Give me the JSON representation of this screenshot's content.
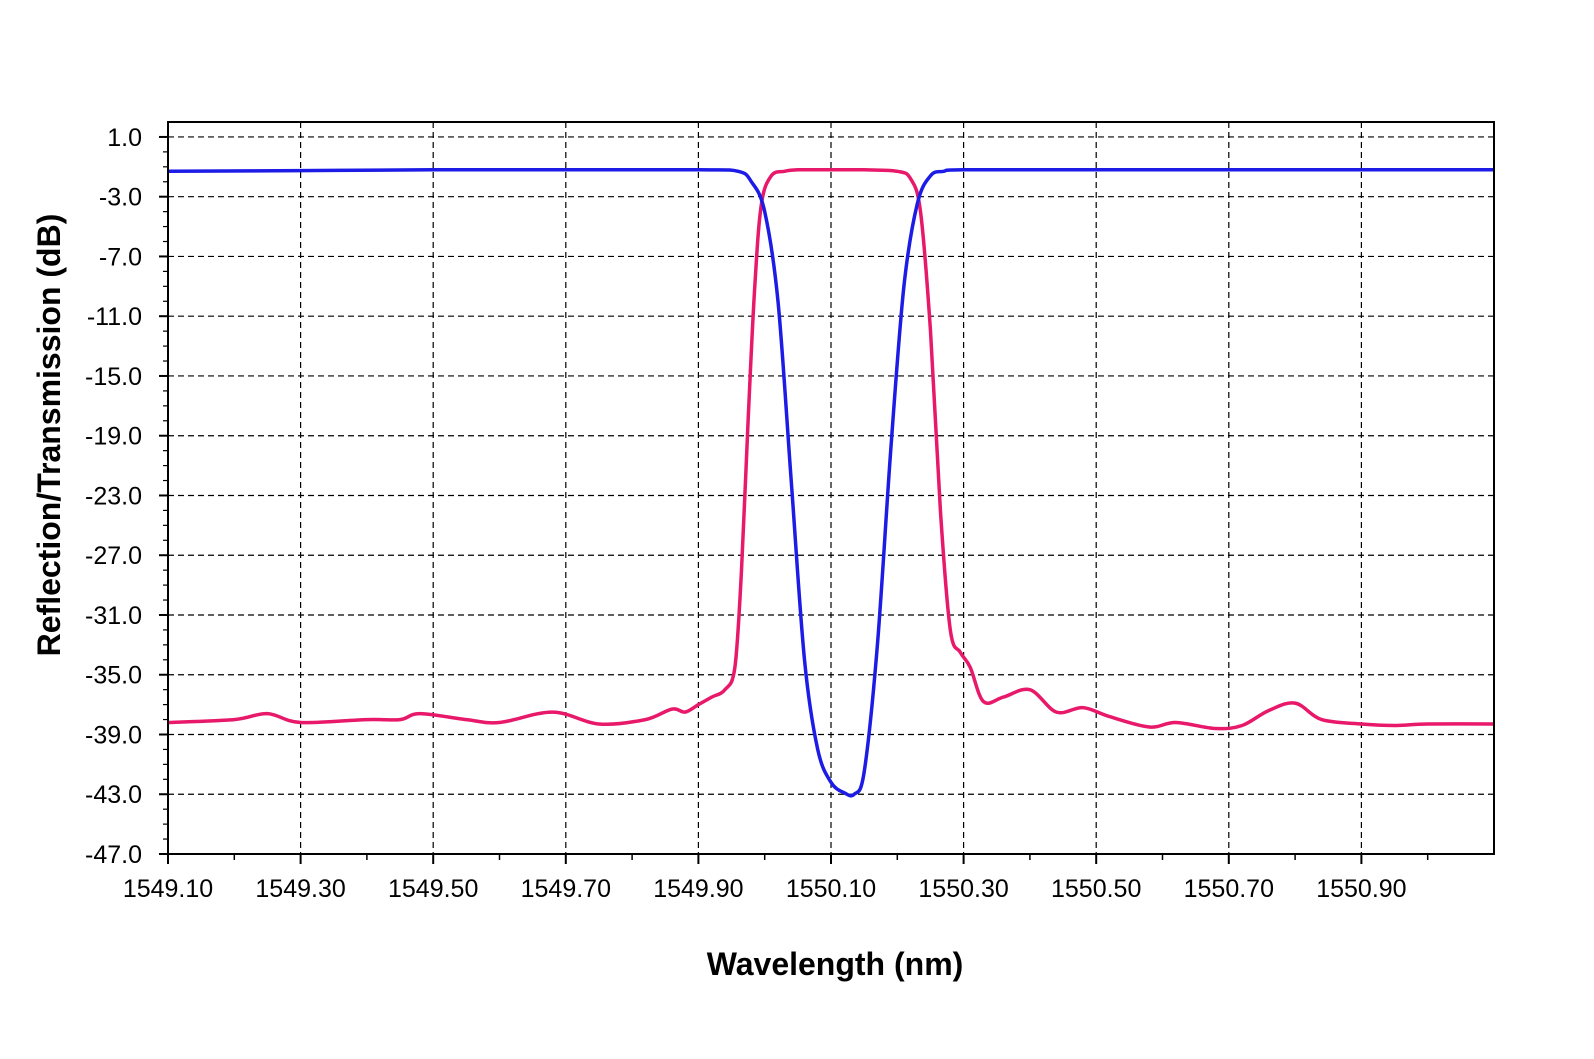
{
  "chart_data": {
    "type": "line",
    "xlabel": "Wavelength (nm)",
    "ylabel": "Reflection/Transmission  (dB)",
    "xlim": [
      1549.1,
      1551.1
    ],
    "ylim": [
      -47.0,
      2.0
    ],
    "x_ticks": [
      1549.1,
      1549.3,
      1549.5,
      1549.7,
      1549.9,
      1550.1,
      1550.3,
      1550.5,
      1550.7,
      1550.9
    ],
    "x_tick_labels": [
      "1549.10",
      "1549.30",
      "1549.50",
      "1549.70",
      "1549.90",
      "1550.10",
      "1550.30",
      "1550.50",
      "1550.70",
      "1550.90"
    ],
    "y_ticks": [
      1.0,
      -3.0,
      -7.0,
      -11.0,
      -15.0,
      -19.0,
      -23.0,
      -27.0,
      -31.0,
      -35.0,
      -39.0,
      -43.0,
      -47.0
    ],
    "y_tick_labels": [
      "1.0",
      "-3.0",
      "-7.0",
      "-11.0",
      "-15.0",
      "-19.0",
      "-23.0",
      "-27.0",
      "-31.0",
      "-35.0",
      "-39.0",
      "-43.0",
      "-47.0"
    ],
    "grid": true,
    "series": [
      {
        "color": "#e8196a",
        "x": [
          1549.1,
          1549.2,
          1549.25,
          1549.3,
          1549.4,
          1549.45,
          1549.48,
          1549.55,
          1549.6,
          1549.68,
          1549.75,
          1549.82,
          1549.86,
          1549.88,
          1549.9,
          1549.92,
          1549.94,
          1549.955,
          1549.965,
          1549.975,
          1549.985,
          1549.995,
          1550.01,
          1550.03,
          1550.05,
          1550.1,
          1550.15,
          1550.2,
          1550.22,
          1550.235,
          1550.25,
          1550.265,
          1550.28,
          1550.295,
          1550.31,
          1550.33,
          1550.36,
          1550.4,
          1550.44,
          1550.48,
          1550.52,
          1550.58,
          1550.62,
          1550.68,
          1550.72,
          1550.76,
          1550.8,
          1550.84,
          1550.9,
          1550.95,
          1551.0,
          1551.1
        ],
        "y": [
          -38.2,
          -38.0,
          -37.6,
          -38.2,
          -38.0,
          -38.0,
          -37.6,
          -38.0,
          -38.2,
          -37.5,
          -38.3,
          -38.0,
          -37.3,
          -37.5,
          -37.0,
          -36.5,
          -36.0,
          -34.5,
          -28.0,
          -18.0,
          -9.0,
          -3.5,
          -1.6,
          -1.3,
          -1.2,
          -1.2,
          -1.2,
          -1.3,
          -1.8,
          -4.0,
          -12.0,
          -24.0,
          -32.0,
          -33.5,
          -34.5,
          -36.8,
          -36.5,
          -36.0,
          -37.5,
          -37.2,
          -37.8,
          -38.5,
          -38.2,
          -38.6,
          -38.4,
          -37.4,
          -36.9,
          -38.0,
          -38.3,
          -38.4,
          -38.3,
          -38.3
        ]
      },
      {
        "color": "#1c1ce6",
        "x": [
          1549.1,
          1549.3,
          1549.5,
          1549.7,
          1549.9,
          1549.96,
          1549.98,
          1550.0,
          1550.02,
          1550.04,
          1550.06,
          1550.08,
          1550.1,
          1550.12,
          1550.135,
          1550.15,
          1550.17,
          1550.19,
          1550.21,
          1550.23,
          1550.25,
          1550.27,
          1550.3,
          1550.5,
          1550.7,
          1551.1
        ],
        "y": [
          -1.3,
          -1.25,
          -1.2,
          -1.2,
          -1.2,
          -1.3,
          -2.0,
          -4.0,
          -10.0,
          -22.0,
          -34.0,
          -40.0,
          -42.2,
          -42.9,
          -43.0,
          -41.5,
          -33.0,
          -20.0,
          -9.0,
          -3.5,
          -1.6,
          -1.3,
          -1.2,
          -1.2,
          -1.2,
          -1.2
        ]
      }
    ]
  }
}
